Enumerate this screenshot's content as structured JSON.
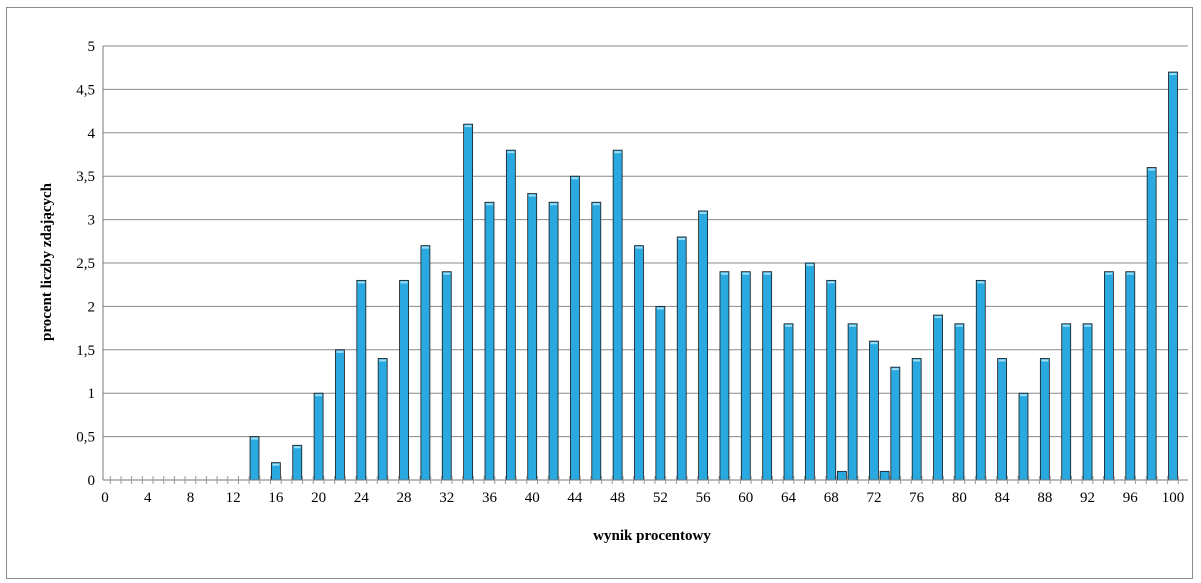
{
  "chart_data": {
    "type": "bar",
    "title": "",
    "xlabel": "wynik procentowy",
    "ylabel": "procent liczby zdających",
    "ylim": [
      0,
      5
    ],
    "y_ticks": [
      "0",
      "0,5",
      "1",
      "1,5",
      "2",
      "2,5",
      "3",
      "3,5",
      "4",
      "4,5",
      "5"
    ],
    "grid": true,
    "legend": "none",
    "bar_color": "#29a9e0",
    "x_tick_labels": [
      "0",
      "4",
      "8",
      "12",
      "16",
      "20",
      "24",
      "28",
      "32",
      "36",
      "40",
      "44",
      "48",
      "52",
      "56",
      "60",
      "64",
      "68",
      "72",
      "76",
      "80",
      "84",
      "88",
      "92",
      "96",
      "100"
    ],
    "categories": [
      0,
      1,
      2,
      3,
      4,
      5,
      6,
      7,
      8,
      9,
      10,
      11,
      12,
      13,
      14,
      15,
      16,
      17,
      18,
      19,
      20,
      21,
      22,
      23,
      24,
      25,
      26,
      27,
      28,
      29,
      30,
      31,
      32,
      33,
      34,
      35,
      36,
      37,
      38,
      39,
      40,
      41,
      42,
      43,
      44,
      45,
      46,
      47,
      48,
      49,
      50,
      51,
      52,
      53,
      54,
      55,
      56,
      57,
      58,
      59,
      60,
      61,
      62,
      63,
      64,
      65,
      66,
      67,
      68,
      69,
      70,
      71,
      72,
      73,
      74,
      75,
      76,
      77,
      78,
      79,
      80,
      81,
      82,
      83,
      84,
      85,
      86,
      87,
      88,
      89,
      90,
      91,
      92,
      93,
      94,
      95,
      96,
      97,
      98,
      99,
      100
    ],
    "values": [
      0,
      0,
      0,
      0,
      0,
      0,
      0,
      0,
      0,
      0,
      0,
      0,
      0,
      0,
      0.5,
      0,
      0.2,
      0,
      0.4,
      0,
      1.0,
      0,
      1.5,
      0,
      2.3,
      0,
      1.4,
      0,
      2.3,
      0,
      2.7,
      0,
      2.4,
      0,
      4.1,
      0,
      3.2,
      0,
      3.8,
      0,
      3.3,
      0,
      3.2,
      0,
      3.5,
      0,
      3.2,
      0,
      3.8,
      0,
      2.7,
      0,
      2.0,
      0,
      2.8,
      0,
      3.1,
      0,
      2.4,
      0,
      2.4,
      0,
      2.4,
      0,
      1.8,
      0,
      2.5,
      0,
      2.3,
      0,
      1.8,
      0,
      1.6,
      0,
      1.3,
      0,
      1.4,
      0,
      1.9,
      0,
      1.8,
      0,
      2.3,
      0,
      1.4,
      0,
      1.0,
      0,
      1.4,
      0,
      1.8,
      0,
      1.8,
      0,
      2.4,
      0,
      2.4,
      0,
      3.6,
      0,
      4.7
    ],
    "thin_marks": [
      {
        "x": 69,
        "value": 0.1
      },
      {
        "x": 73,
        "value": 0.1
      }
    ]
  }
}
